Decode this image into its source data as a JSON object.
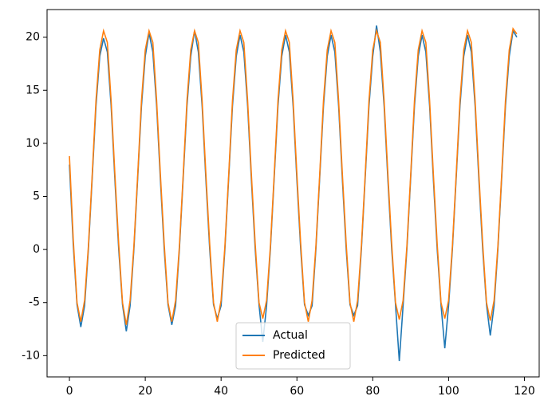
{
  "chart_data": {
    "type": "line",
    "x": [
      0,
      1,
      2,
      3,
      4,
      5,
      6,
      7,
      8,
      9,
      10,
      11,
      12,
      13,
      14,
      15,
      16,
      17,
      18,
      19,
      20,
      21,
      22,
      23,
      24,
      25,
      26,
      27,
      28,
      29,
      30,
      31,
      32,
      33,
      34,
      35,
      36,
      37,
      38,
      39,
      40,
      41,
      42,
      43,
      44,
      45,
      46,
      47,
      48,
      49,
      50,
      51,
      52,
      53,
      54,
      55,
      56,
      57,
      58,
      59,
      60,
      61,
      62,
      63,
      64,
      65,
      66,
      67,
      68,
      69,
      70,
      71,
      72,
      73,
      74,
      75,
      76,
      77,
      78,
      79,
      80,
      81,
      82,
      83,
      84,
      85,
      86,
      87,
      88,
      89,
      90,
      91,
      92,
      93,
      94,
      95,
      96,
      97,
      98,
      99,
      100,
      101,
      102,
      103,
      104,
      105,
      106,
      107,
      108,
      109,
      110,
      111,
      112,
      113,
      114,
      115,
      116,
      117,
      118
    ],
    "series": [
      {
        "name": "Actual",
        "color": "#1f77b4",
        "values": [
          8.0,
          0.5,
          -5.2,
          -7.3,
          -5.3,
          0.0,
          6.7,
          13.5,
          18.2,
          19.9,
          18.6,
          13.5,
          6.5,
          0.0,
          -5.2,
          -7.7,
          -5.3,
          0.0,
          6.7,
          13.5,
          18.2,
          20.4,
          18.6,
          13.5,
          6.5,
          0.0,
          -5.2,
          -7.1,
          -5.3,
          0.0,
          6.7,
          13.5,
          18.2,
          20.6,
          18.6,
          13.5,
          6.5,
          0.0,
          -5.2,
          -6.5,
          -5.3,
          0.0,
          6.7,
          13.5,
          18.2,
          20.2,
          18.6,
          13.5,
          6.5,
          0.0,
          -5.2,
          -8.7,
          -5.3,
          0.0,
          6.7,
          13.5,
          18.2,
          20.2,
          18.6,
          13.5,
          6.5,
          0.0,
          -5.2,
          -6.2,
          -5.3,
          0.0,
          6.7,
          13.5,
          18.2,
          20.2,
          18.6,
          13.5,
          6.5,
          0.0,
          -5.2,
          -6.2,
          -5.3,
          0.0,
          6.7,
          13.5,
          18.2,
          21.1,
          18.6,
          13.5,
          6.5,
          0.0,
          -5.2,
          -10.5,
          -5.3,
          0.0,
          6.7,
          13.5,
          18.2,
          20.2,
          18.6,
          13.5,
          6.5,
          0.0,
          -5.2,
          -9.3,
          -5.3,
          0.0,
          6.7,
          13.5,
          18.2,
          20.2,
          18.6,
          13.5,
          6.5,
          0.0,
          -5.2,
          -8.1,
          -5.3,
          0.0,
          6.7,
          13.5,
          18.2,
          20.6,
          20.0
        ]
      },
      {
        "name": "Predicted",
        "color": "#ff7f0e",
        "values": [
          8.8,
          1.0,
          -5.0,
          -6.8,
          -4.8,
          0.3,
          7.0,
          14.0,
          18.8,
          20.6,
          19.5,
          14.0,
          7.0,
          0.5,
          -5.0,
          -7.1,
          -4.8,
          0.3,
          7.0,
          14.0,
          18.8,
          20.6,
          19.5,
          14.0,
          7.0,
          0.5,
          -5.0,
          -6.8,
          -4.8,
          0.3,
          7.0,
          14.0,
          18.8,
          20.6,
          19.5,
          14.0,
          7.0,
          0.5,
          -5.0,
          -6.8,
          -4.8,
          0.3,
          7.0,
          14.0,
          18.8,
          20.6,
          19.5,
          14.0,
          7.0,
          0.5,
          -5.0,
          -6.5,
          -4.8,
          0.3,
          7.0,
          14.0,
          18.8,
          20.6,
          19.5,
          14.0,
          7.0,
          0.5,
          -5.0,
          -6.8,
          -4.8,
          0.3,
          7.0,
          14.0,
          18.8,
          20.6,
          19.5,
          14.0,
          7.0,
          0.5,
          -5.0,
          -6.8,
          -4.8,
          0.3,
          7.0,
          14.0,
          18.8,
          20.6,
          19.5,
          14.0,
          7.0,
          0.5,
          -5.0,
          -6.6,
          -4.8,
          0.3,
          7.0,
          14.0,
          18.8,
          20.6,
          19.5,
          14.0,
          7.0,
          0.5,
          -5.0,
          -6.5,
          -4.8,
          0.3,
          7.0,
          14.0,
          18.8,
          20.6,
          19.5,
          14.0,
          7.0,
          0.5,
          -5.0,
          -6.7,
          -4.8,
          0.3,
          7.0,
          14.0,
          18.8,
          20.8,
          20.3
        ]
      }
    ],
    "xlim": [
      -5.9,
      123.9
    ],
    "xticks": [
      0,
      20,
      40,
      60,
      80,
      100,
      120
    ],
    "ylim": [
      -12,
      22.6
    ],
    "yticks": [
      -10,
      -5,
      0,
      5,
      10,
      15,
      20
    ],
    "grid": false,
    "legend": "lower center"
  }
}
